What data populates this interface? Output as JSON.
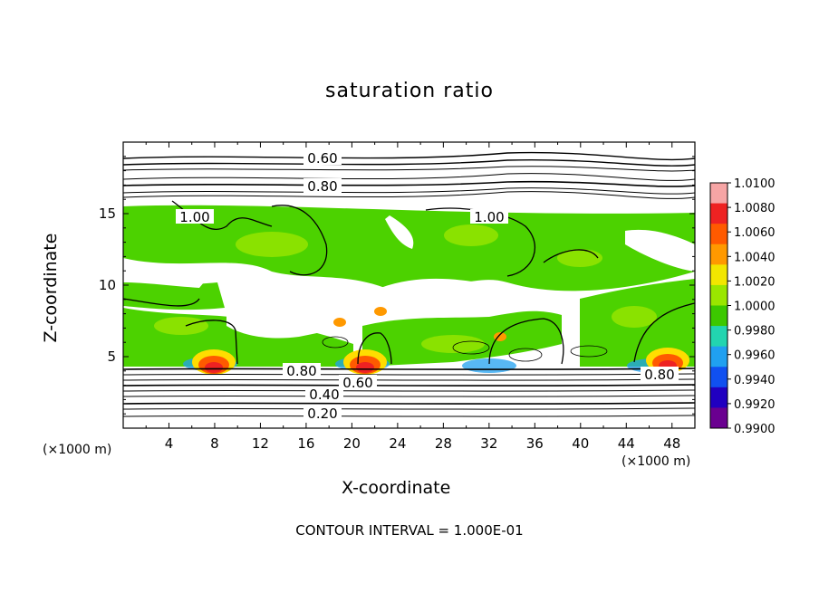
{
  "chart_data": {
    "type": "heatmap",
    "title": "saturation ratio",
    "xlabel": "X-coordinate",
    "ylabel": "Z-coordinate",
    "x_unit": "(×1000 m)",
    "xlim": [
      0,
      50
    ],
    "ylim": [
      0,
      20
    ],
    "x_ticks": [
      "4",
      "8",
      "12",
      "16",
      "20",
      "24",
      "28",
      "32",
      "36",
      "40",
      "44",
      "48"
    ],
    "y_ticks": [
      "5",
      "10",
      "15"
    ],
    "colorbar": {
      "labels": [
        "1.0100",
        "1.0080",
        "1.0060",
        "1.0040",
        "1.0020",
        "1.0000",
        "0.9980",
        "0.9960",
        "0.9940",
        "0.9920",
        "0.9900"
      ],
      "colors": [
        "#f6a5a5",
        "#ee2222",
        "#ff5a00",
        "#ff9900",
        "#f2e600",
        "#9ae600",
        "#3cc800",
        "#22d5b0",
        "#20a0f0",
        "#1050f0",
        "#2000c0",
        "#6a0090"
      ]
    },
    "contour_labels": [
      "0.60",
      "0.80",
      "1.00",
      "1.00",
      "0.80",
      "0.60",
      "0.80",
      "0.40",
      "0.20"
    ],
    "contour_interval_text": "CONTOUR INTERVAL = 1.000E-01"
  }
}
